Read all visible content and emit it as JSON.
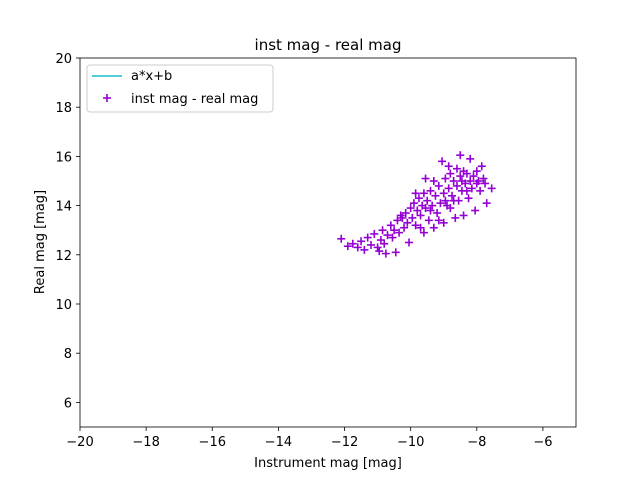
{
  "chart_data": {
    "type": "scatter",
    "title": "inst mag - real mag",
    "xlabel": "Instrument mag [mag]",
    "ylabel": "Real mag [mag]",
    "xlim": [
      -20,
      -5
    ],
    "ylim": [
      5,
      20
    ],
    "xticks": [
      -20,
      -18,
      -16,
      -14,
      -12,
      -10,
      -8,
      -6
    ],
    "yticks": [
      6,
      8,
      10,
      12,
      14,
      16,
      18,
      20
    ],
    "xtick_labels": [
      "−20",
      "−18",
      "−16",
      "−14",
      "−12",
      "−10",
      "−8",
      "−6"
    ],
    "ytick_labels": [
      "6",
      "8",
      "10",
      "12",
      "14",
      "16",
      "18",
      "20"
    ],
    "grid": false,
    "legend_position": "top-left",
    "legend": [
      {
        "label": "a*x+b",
        "kind": "line",
        "color": "#17becf"
      },
      {
        "label": "inst mag - real mag",
        "kind": "marker",
        "marker": "+",
        "color": "#9400d3"
      }
    ],
    "series": [
      {
        "name": "inst mag - real mag",
        "marker": "+",
        "color": "#9400d3",
        "points": [
          [
            -12.1,
            12.65
          ],
          [
            -11.9,
            12.35
          ],
          [
            -11.75,
            12.45
          ],
          [
            -11.6,
            12.3
          ],
          [
            -11.5,
            12.55
          ],
          [
            -11.4,
            12.2
          ],
          [
            -11.3,
            12.7
          ],
          [
            -11.2,
            12.4
          ],
          [
            -11.1,
            12.85
          ],
          [
            -11.0,
            12.3
          ],
          [
            -10.95,
            12.15
          ],
          [
            -10.9,
            12.6
          ],
          [
            -10.85,
            13.0
          ],
          [
            -10.8,
            12.45
          ],
          [
            -10.75,
            12.05
          ],
          [
            -10.7,
            12.8
          ],
          [
            -10.6,
            13.2
          ],
          [
            -10.55,
            12.7
          ],
          [
            -10.5,
            13.0
          ],
          [
            -10.4,
            13.4
          ],
          [
            -10.35,
            12.9
          ],
          [
            -10.3,
            13.6
          ],
          [
            -10.2,
            13.1
          ],
          [
            -10.15,
            13.7
          ],
          [
            -10.1,
            13.3
          ],
          [
            -10.05,
            12.5
          ],
          [
            -10.0,
            13.9
          ],
          [
            -9.95,
            13.5
          ],
          [
            -9.9,
            14.1
          ],
          [
            -9.85,
            13.2
          ],
          [
            -9.8,
            13.8
          ],
          [
            -9.75,
            14.3
          ],
          [
            -9.7,
            13.6
          ],
          [
            -9.65,
            14.0
          ],
          [
            -9.6,
            14.5
          ],
          [
            -9.6,
            12.9
          ],
          [
            -9.55,
            13.9
          ],
          [
            -9.5,
            14.2
          ],
          [
            -9.45,
            13.4
          ],
          [
            -9.4,
            14.6
          ],
          [
            -9.35,
            14.0
          ],
          [
            -9.3,
            15.0
          ],
          [
            -9.3,
            13.1
          ],
          [
            -9.25,
            14.4
          ],
          [
            -9.2,
            13.7
          ],
          [
            -9.15,
            14.8
          ],
          [
            -9.1,
            14.1
          ],
          [
            -9.05,
            15.8
          ],
          [
            -9.0,
            14.5
          ],
          [
            -9.0,
            13.3
          ],
          [
            -8.95,
            15.1
          ],
          [
            -8.9,
            14.0
          ],
          [
            -8.85,
            14.7
          ],
          [
            -8.8,
            15.3
          ],
          [
            -8.8,
            13.9
          ],
          [
            -8.75,
            14.4
          ],
          [
            -8.7,
            15.0
          ],
          [
            -8.65,
            13.5
          ],
          [
            -8.6,
            14.8
          ],
          [
            -8.6,
            15.5
          ],
          [
            -8.55,
            14.2
          ],
          [
            -8.5,
            15.2
          ],
          [
            -8.5,
            16.05
          ],
          [
            -8.45,
            14.6
          ],
          [
            -8.4,
            15.4
          ],
          [
            -8.4,
            13.6
          ],
          [
            -8.35,
            14.9
          ],
          [
            -8.3,
            15.3
          ],
          [
            -8.25,
            14.3
          ],
          [
            -8.2,
            15.9
          ],
          [
            -8.2,
            15.0
          ],
          [
            -8.15,
            14.7
          ],
          [
            -8.1,
            15.2
          ],
          [
            -8.05,
            13.8
          ],
          [
            -8.0,
            14.9
          ],
          [
            -8.0,
            15.4
          ],
          [
            -7.95,
            15.0
          ],
          [
            -7.9,
            14.6
          ],
          [
            -7.85,
            15.6
          ],
          [
            -7.8,
            15.1
          ],
          [
            -7.75,
            14.9
          ],
          [
            -7.7,
            14.1
          ],
          [
            -7.55,
            14.7
          ],
          [
            -10.45,
            12.1
          ],
          [
            -9.85,
            14.5
          ],
          [
            -9.15,
            13.4
          ],
          [
            -8.95,
            14.2
          ],
          [
            -8.7,
            14.2
          ],
          [
            -8.45,
            15.0
          ],
          [
            -9.4,
            13.8
          ],
          [
            -10.25,
            13.5
          ],
          [
            -9.7,
            13.1
          ],
          [
            -8.85,
            15.6
          ],
          [
            -8.3,
            14.6
          ],
          [
            -9.55,
            15.1
          ]
        ]
      }
    ]
  }
}
